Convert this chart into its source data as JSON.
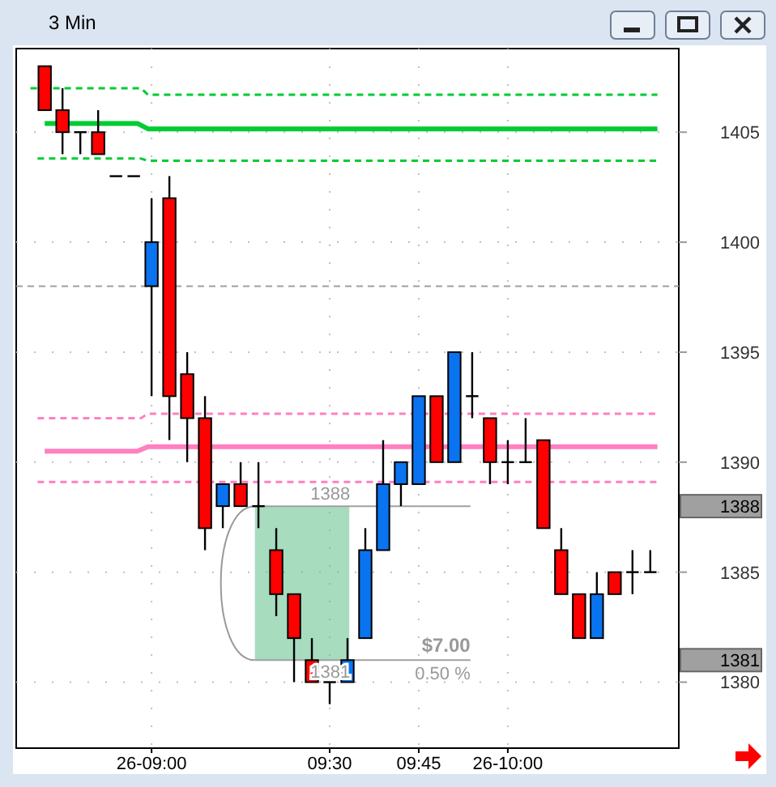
{
  "chart_data": {
    "type": "candlestick",
    "title": "3 Min",
    "x": [
      8.7,
      8.75,
      8.8,
      8.85,
      8.9,
      8.95,
      9,
      9.05,
      9.1,
      9.15,
      9.2,
      9.25,
      9.3,
      9.35,
      9.4,
      9.45,
      9.5,
      9.55,
      9.6,
      9.65,
      9.7,
      9.75,
      9.8,
      9.85,
      9.9,
      9.95,
      10,
      10.05,
      10.1,
      10.15,
      10.2,
      10.25,
      10.3,
      10.35,
      10.4
    ],
    "ohlc": [
      [
        1408,
        1408,
        1406,
        1406
      ],
      [
        1406,
        1407,
        1404,
        1405
      ],
      [
        1405,
        1405,
        1404,
        1405
      ],
      [
        1405,
        1406,
        1404,
        1404
      ],
      [
        1403,
        1403,
        1403,
        1403
      ],
      [
        1403,
        1403,
        1403,
        1403
      ],
      [
        1398,
        1402,
        1393,
        1400
      ],
      [
        1402,
        1403,
        1391,
        1393
      ],
      [
        1394,
        1395,
        1390,
        1392
      ],
      [
        1392,
        1393,
        1386,
        1387
      ],
      [
        1388,
        1389,
        1387,
        1389
      ],
      [
        1389,
        1390,
        1388,
        1388
      ],
      [
        1388,
        1390,
        1387,
        1388
      ],
      [
        1386,
        1387,
        1383,
        1384
      ],
      [
        1384,
        1384,
        1380,
        1382
      ],
      [
        1381,
        1382,
        1380,
        1380
      ],
      [
        1380,
        1380,
        1379,
        1380
      ],
      [
        1380,
        1382,
        1380,
        1381
      ],
      [
        1382,
        1387,
        1382,
        1386
      ],
      [
        1386,
        1391,
        1386,
        1389
      ],
      [
        1389,
        1390,
        1388,
        1390
      ],
      [
        1389,
        1393,
        1389,
        1393
      ],
      [
        1393,
        1393,
        1390,
        1390
      ],
      [
        1390,
        1395,
        1390,
        1395
      ],
      [
        1393,
        1395,
        1392,
        1393
      ],
      [
        1392,
        1392,
        1389,
        1390
      ],
      [
        1390,
        1391,
        1389,
        1390
      ],
      [
        1390,
        1392,
        1390,
        1390
      ],
      [
        1391,
        1391,
        1387,
        1387
      ],
      [
        1386,
        1387,
        1384,
        1384
      ],
      [
        1384,
        1384,
        1382,
        1382
      ],
      [
        1382,
        1385,
        1382,
        1384
      ],
      [
        1385,
        1385,
        1384,
        1384
      ],
      [
        1385,
        1386,
        1384,
        1385
      ],
      [
        1385,
        1386,
        1385,
        1385
      ]
    ],
    "colors": [
      "#ff0000",
      "#ff0000",
      "#000000",
      "#ff0000",
      "#000000",
      "#000000",
      "#0a74f0",
      "#ff0000",
      "#ff0000",
      "#ff0000",
      "#0a74f0",
      "#ff0000",
      "#000000",
      "#ff0000",
      "#ff0000",
      "#ff0000",
      "#000000",
      "#0a74f0",
      "#0a74f0",
      "#0a74f0",
      "#0a74f0",
      "#0a74f0",
      "#ff0000",
      "#0a74f0",
      "#000000",
      "#ff0000",
      "#000000",
      "#000000",
      "#ff0000",
      "#ff0000",
      "#ff0000",
      "#0a74f0",
      "#ff0000",
      "#000000",
      "#000000"
    ],
    "series": [
      {
        "type": "line",
        "color": "#00cc33",
        "line_style": "dashed",
        "x": [
          8.66,
          8.97,
          8.99,
          10.42
        ],
        "values": [
          1407,
          1407,
          1406.7,
          1406.7
        ]
      },
      {
        "type": "line",
        "color": "#00cc33",
        "line_style": "solid",
        "x": [
          8.7,
          8.96,
          8.99,
          10.42
        ],
        "values": [
          1405.4,
          1405.4,
          1405.15,
          1405.15
        ]
      },
      {
        "type": "line",
        "color": "#00cc33",
        "line_style": "dashed",
        "x": [
          8.68,
          8.97,
          8.99,
          10.42
        ],
        "values": [
          1403.8,
          1403.8,
          1403.7,
          1403.7
        ]
      },
      {
        "type": "line",
        "color": "#ff80c0",
        "line_style": "dashed",
        "x": [
          8.68,
          8.97,
          8.99,
          10.42
        ],
        "values": [
          1392,
          1392,
          1392.2,
          1392.2
        ]
      },
      {
        "type": "line",
        "color": "#ff80c0",
        "line_style": "solid",
        "x": [
          8.7,
          8.96,
          8.99,
          10.42
        ],
        "values": [
          1390.5,
          1390.5,
          1390.7,
          1390.7
        ]
      },
      {
        "type": "line",
        "color": "#ff80c0",
        "line_style": "dashed",
        "x": [
          8.68,
          10.42
        ],
        "values": [
          1389.1,
          1389.1
        ]
      }
    ],
    "xlim": [
      8.62,
      10.48
    ],
    "xticks": [
      {
        "value": 9,
        "label": "26-09:00"
      },
      {
        "value": 9.5,
        "label": "09:30"
      },
      {
        "value": 9.75,
        "label": "09:45"
      },
      {
        "value": 10,
        "label": "26-10:00"
      }
    ],
    "ylim": [
      1377,
      1408.8
    ],
    "yticks": [
      1380,
      1385,
      1390,
      1395,
      1400,
      1405
    ],
    "grid": true,
    "ref_lines": [
      {
        "axis": "y",
        "value": 1398,
        "color": "#a0a0a0",
        "line_style": "dashed"
      },
      {
        "axis": "y",
        "value": 1388,
        "label": "1388",
        "color": "#a0a0a0",
        "line_style": "solid"
      },
      {
        "axis": "y",
        "value": 1381,
        "label": "1381",
        "color": "#a0a0a0",
        "line_style": "solid"
      }
    ],
    "annotations": [
      "$7.00",
      "0.50 %"
    ]
  }
}
